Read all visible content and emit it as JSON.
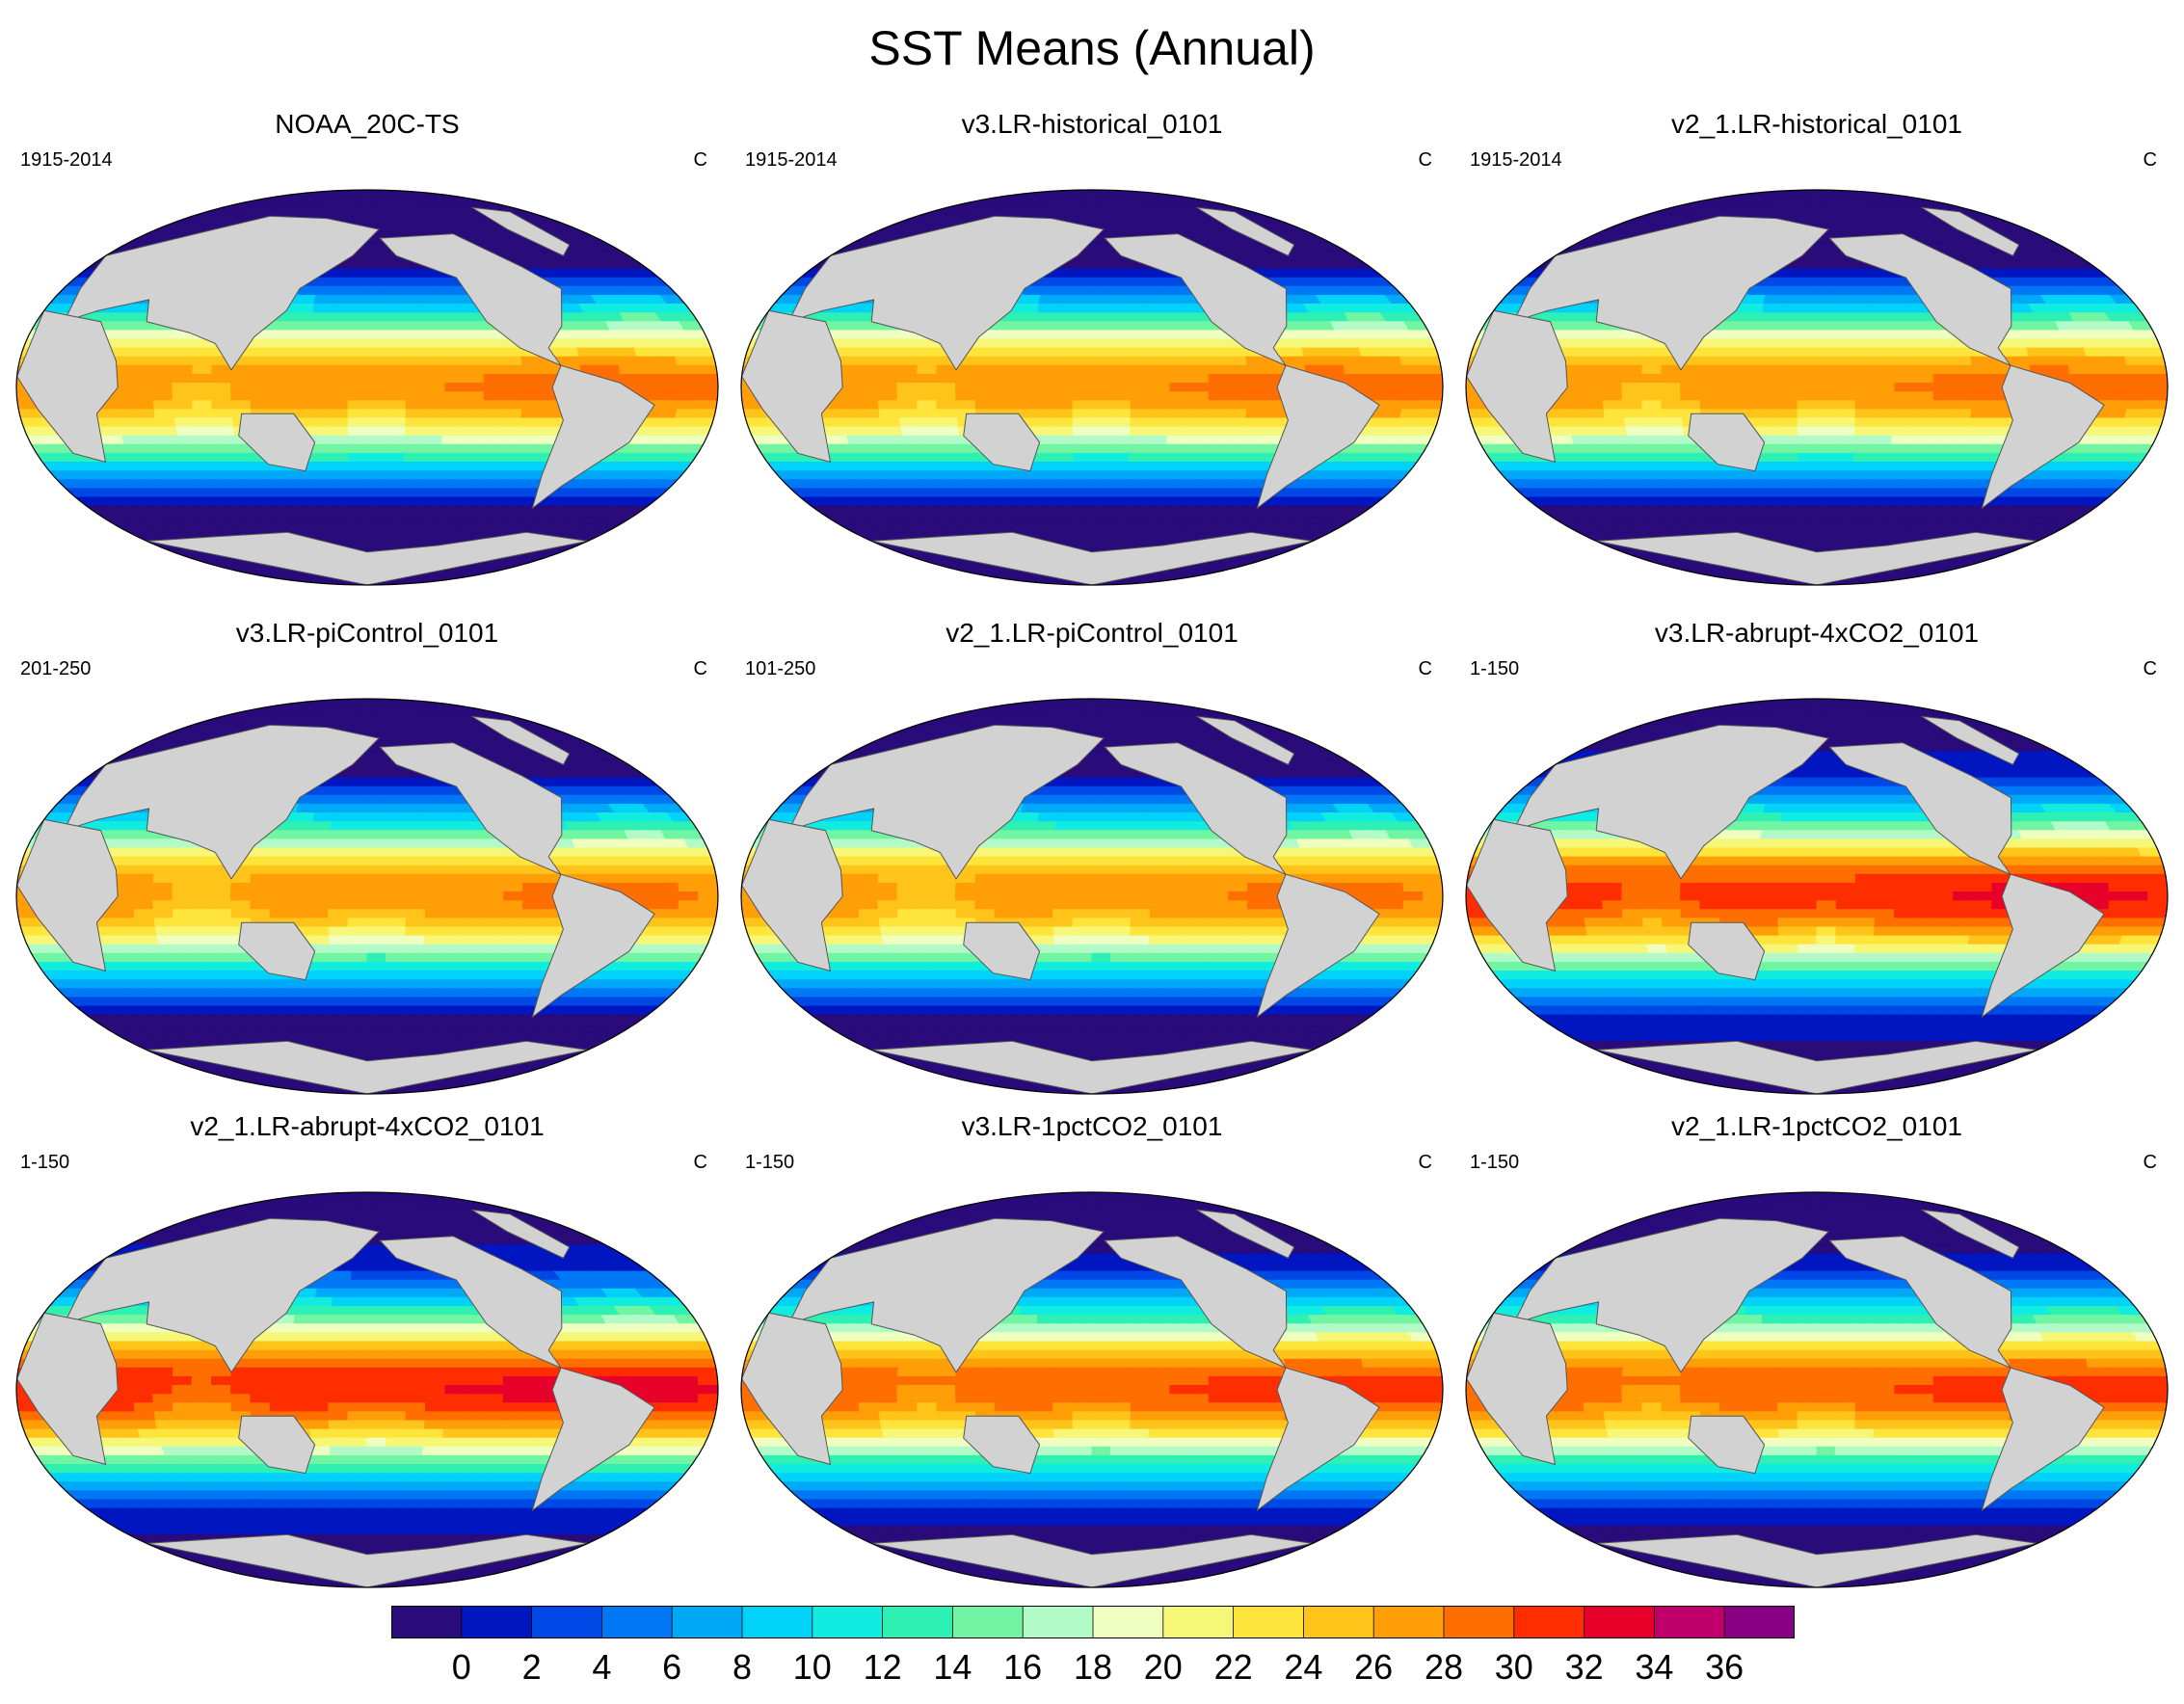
{
  "title": "SST Means (Annual)",
  "panels": [
    {
      "title": "NOAA_20C-TS",
      "period": "1915-2014",
      "units": "C",
      "warming": 0
    },
    {
      "title": "v3.LR-historical_0101",
      "period": "1915-2014",
      "units": "C",
      "warming": 0
    },
    {
      "title": "v2_1.LR-historical_0101",
      "period": "1915-2014",
      "units": "C",
      "warming": 0
    },
    {
      "title": "v3.LR-piControl_0101",
      "period": "201-250",
      "units": "C",
      "warming": -0.5
    },
    {
      "title": "v2_1.LR-piControl_0101",
      "period": "101-250",
      "units": "C",
      "warming": -0.5
    },
    {
      "title": "v3.LR-abrupt-4xCO2_0101",
      "period": "1-150",
      "units": "C",
      "warming": 3.5
    },
    {
      "title": "v2_1.LR-abrupt-4xCO2_0101",
      "period": "1-150",
      "units": "C",
      "warming": 4
    },
    {
      "title": "v3.LR-1pctCO2_0101",
      "period": "1-150",
      "units": "C",
      "warming": 2
    },
    {
      "title": "v2_1.LR-1pctCO2_0101",
      "period": "1-150",
      "units": "C",
      "warming": 2
    }
  ],
  "colorbar": {
    "levels": [
      0,
      2,
      4,
      6,
      8,
      10,
      12,
      14,
      16,
      18,
      20,
      22,
      24,
      26,
      28,
      30,
      32,
      34,
      36
    ],
    "labels": [
      "0",
      "2",
      "4",
      "6",
      "8",
      "10",
      "12",
      "14",
      "16",
      "18",
      "20",
      "22",
      "24",
      "26",
      "28",
      "30",
      "32",
      "34",
      "36"
    ],
    "colors": [
      "#2a0b7a",
      "#0016c0",
      "#0048e6",
      "#0077f5",
      "#00a8f8",
      "#00d2fa",
      "#10ece0",
      "#2ef0b2",
      "#72f5a2",
      "#b2fbc8",
      "#efffc0",
      "#f6f776",
      "#ffe43c",
      "#ffc41a",
      "#ff9e06",
      "#ff6e00",
      "#ff2e00",
      "#e6002a",
      "#c0006a",
      "#8a0084"
    ]
  },
  "land_color": "#d2d2d2"
}
